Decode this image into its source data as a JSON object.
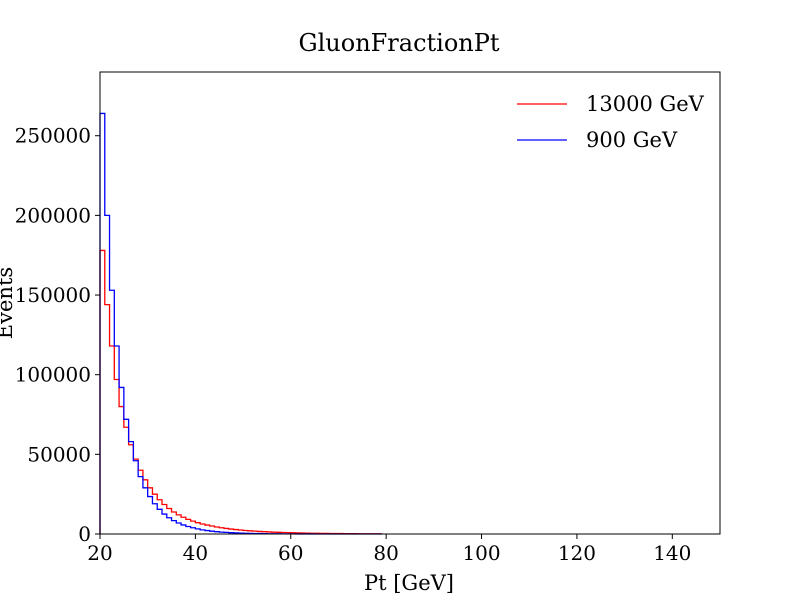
{
  "chart_data": {
    "type": "line",
    "drawstyle": "steps",
    "title": "GluonFractionPt",
    "xlabel": "Pt [GeV]",
    "ylabel": "Events",
    "xlim": [
      20,
      150
    ],
    "ylim": [
      0,
      290000
    ],
    "x_ticks": [
      20,
      40,
      60,
      80,
      100,
      120,
      140
    ],
    "y_ticks": [
      0,
      50000,
      100000,
      150000,
      200000,
      250000
    ],
    "bin_width": 1,
    "legend_position": "top-right",
    "grid": false,
    "series": [
      {
        "name": "13000 GeV",
        "color": "#ff0000",
        "bins_start": 20,
        "values": [
          178000,
          144000,
          118000,
          97000,
          80000,
          67000,
          56000,
          47000,
          40000,
          34000,
          29000,
          25000,
          21500,
          18500,
          16000,
          13800,
          12000,
          10500,
          9200,
          8100,
          7100,
          6300,
          5600,
          5000,
          4400,
          3900,
          3500,
          3100,
          2800,
          2500,
          2200,
          2000,
          1800,
          1600,
          1450,
          1300,
          1150,
          1050,
          950,
          850,
          760,
          680,
          610,
          550,
          490,
          440,
          400,
          360,
          320,
          290,
          260,
          230,
          210,
          190,
          170,
          150,
          135,
          120,
          105
        ]
      },
      {
        "name": "900 GeV",
        "color": "#0000ff",
        "bins_start": 20,
        "values": [
          264000,
          200000,
          153000,
          118000,
          92000,
          72000,
          58000,
          46000,
          36000,
          29000,
          23500,
          19000,
          15500,
          12500,
          10200,
          8400,
          6900,
          5700,
          4700,
          3900,
          3200,
          2600,
          2150,
          1750,
          1450,
          1200,
          1000,
          820,
          680,
          560,
          460,
          380,
          310,
          260,
          210,
          170,
          140,
          115,
          95,
          75,
          60,
          48,
          38,
          30,
          24,
          18,
          14,
          11,
          8,
          6,
          5,
          4,
          3,
          2,
          2,
          1,
          1,
          1,
          1
        ]
      }
    ]
  }
}
